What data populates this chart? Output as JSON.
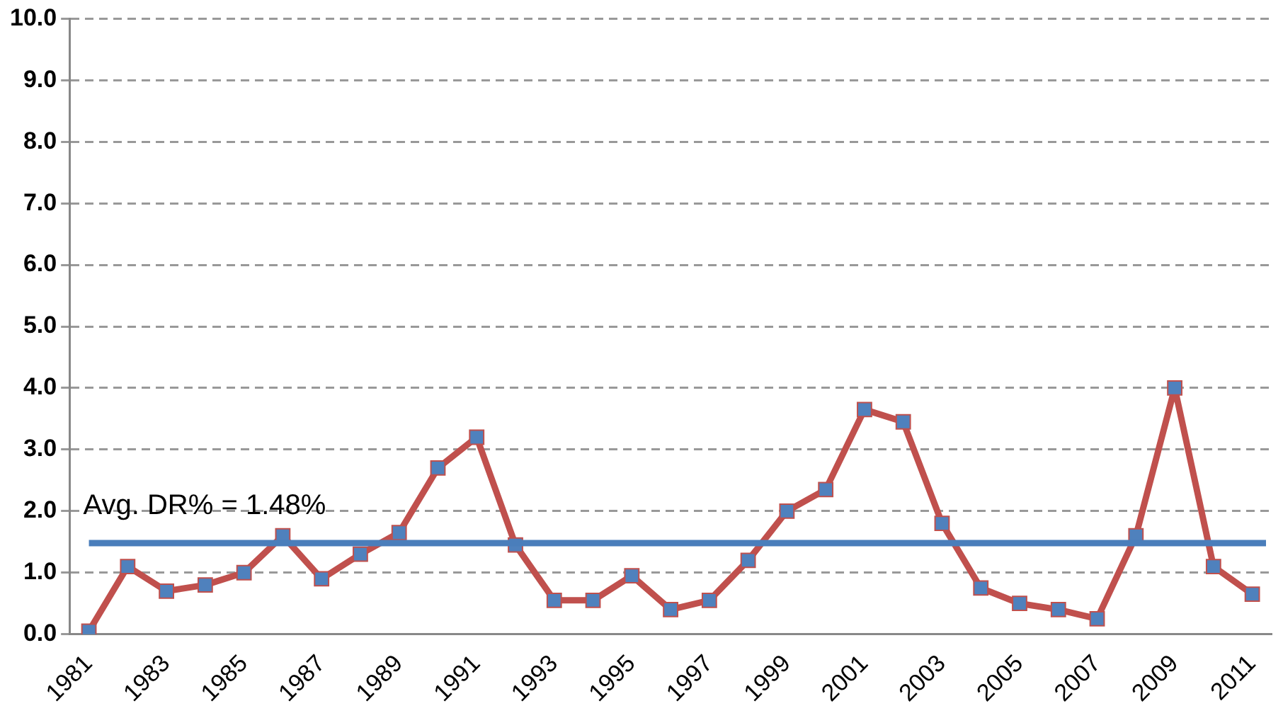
{
  "chart_data": {
    "type": "line",
    "categories": [
      "1981",
      null,
      "1983",
      null,
      "1985",
      null,
      "1987",
      null,
      "1989",
      null,
      "1991",
      null,
      "1993",
      null,
      "1995",
      null,
      "1997",
      null,
      "1999",
      null,
      "2001",
      null,
      "2003",
      null,
      "2005",
      null,
      "2007",
      null,
      "2009",
      null,
      "2011"
    ],
    "series": [
      {
        "color": "#c0504d",
        "values": [
          0.05,
          1.1,
          0.7,
          0.8,
          1.0,
          1.6,
          0.9,
          1.3,
          1.65,
          2.7,
          3.2,
          1.45,
          0.55,
          0.55,
          0.95,
          0.4,
          0.55,
          1.2,
          2.0,
          2.35,
          3.65,
          3.45,
          1.8,
          0.75,
          0.5,
          0.4,
          0.25,
          1.6,
          4.0,
          1.1,
          0.65
        ]
      }
    ],
    "ylim": [
      0,
      10
    ],
    "yticks": [
      {
        "value": 0,
        "label": "0.0"
      },
      {
        "value": 1,
        "label": "1.0"
      },
      {
        "value": 2,
        "label": "2.0"
      },
      {
        "value": 3,
        "label": "3.0"
      },
      {
        "value": 4,
        "label": "4.0"
      },
      {
        "value": 5,
        "label": "5.0"
      },
      {
        "value": 6,
        "label": "6.0"
      },
      {
        "value": 7,
        "label": "7.0"
      },
      {
        "value": 8,
        "label": "8.0"
      },
      {
        "value": 9,
        "label": "9.0"
      },
      {
        "value": 10,
        "label": "10.0"
      }
    ],
    "ref_lines": [
      {
        "axis": "y",
        "value": 1.48,
        "label": "Avg. DR% = 1.48%",
        "color": "#4a7ebb",
        "line_style": "solid"
      }
    ],
    "grid": "y",
    "legend": false,
    "marker": "square",
    "line_style": "solid"
  }
}
